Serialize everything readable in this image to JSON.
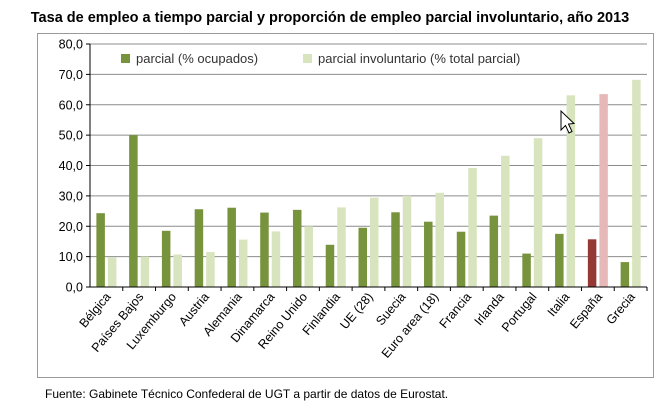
{
  "title": "Tasa de empleo a tiempo parcial y proporción de empleo parcial involuntario, año 2013",
  "source": "Fuente: Gabinete Técnico Confederal de UGT a partir de datos de Eurostat.",
  "colors": {
    "parcial": "#77933c",
    "involuntario": "#d7e4bd",
    "parcial_highlight": "#953735",
    "involuntario_highlight": "#e6b9b8",
    "grid": "#8c8c8c"
  },
  "chart_data": {
    "type": "bar",
    "title": "Tasa de empleo a tiempo parcial y proporción de empleo parcial involuntario, año 2013",
    "ylim": [
      0,
      80
    ],
    "yticks": [
      "0,0",
      "10,0",
      "20,0",
      "30,0",
      "40,0",
      "50,0",
      "60,0",
      "70,0",
      "80,0"
    ],
    "grid": true,
    "legend_position": "top",
    "highlight_category": "España",
    "categories": [
      "Bélgica",
      "Países Bajos",
      "Luxemburgo",
      "Austria",
      "Alemania",
      "Dinamarca",
      "Reino Unido",
      "Finlandia",
      "UE (28)",
      "Suecia",
      "Euro area (18)",
      "Francia",
      "Irlanda",
      "Portugal",
      "Italia",
      "España",
      "Grecia"
    ],
    "series": [
      {
        "name": "parcial (% ocupados)",
        "values": [
          24.3,
          50.0,
          18.5,
          25.6,
          26.1,
          24.5,
          25.4,
          13.9,
          19.5,
          24.6,
          21.5,
          18.2,
          23.5,
          11.0,
          17.5,
          15.7,
          8.2
        ]
      },
      {
        "name": "parcial involuntario (% total parcial)",
        "values": [
          9.8,
          10.0,
          10.7,
          11.5,
          15.6,
          18.3,
          20.0,
          26.2,
          29.4,
          30.0,
          31.0,
          39.2,
          43.2,
          49.0,
          63.1,
          63.5,
          68.2
        ]
      }
    ]
  }
}
